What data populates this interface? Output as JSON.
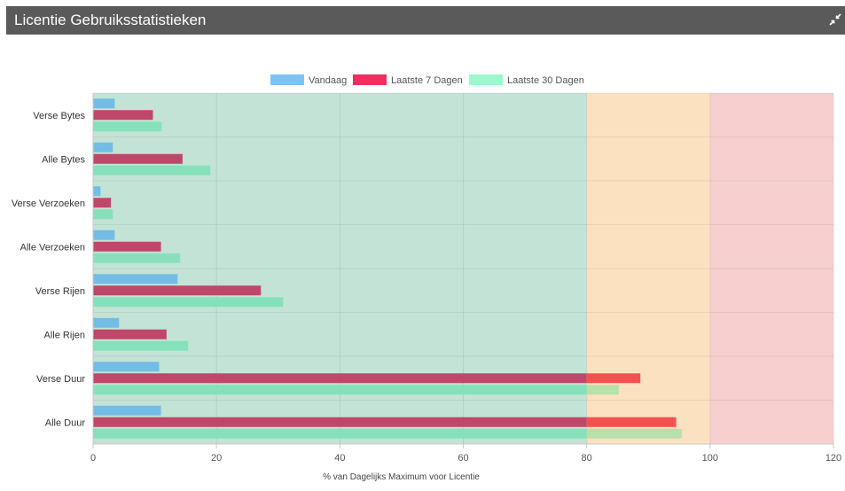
{
  "panel": {
    "title": "Licentie Gebruiksstatistieken",
    "icon": "collapse-icon"
  },
  "chart_data": {
    "type": "bar",
    "orientation": "horizontal",
    "categories": [
      "Verse Bytes",
      "Alle Bytes",
      "Verse Verzoeken",
      "Alle Verzoeken",
      "Verse Rijen",
      "Alle Rijen",
      "Verse Duur",
      "Alle Duur"
    ],
    "series": [
      {
        "name": "Vandaag",
        "values": [
          3.5,
          3.2,
          1.2,
          3.5,
          13.7,
          4.2,
          10.7,
          11.0
        ],
        "color": "#6ab7e8",
        "legend_color": "#7fc3f5"
      },
      {
        "name": "Laatste 7 Dagen",
        "values": [
          9.7,
          14.5,
          2.9,
          11.0,
          27.2,
          11.9,
          88.7,
          94.5
        ],
        "color": "#c0355e",
        "over_color": "#f04a4a",
        "legend_color": "#ee3060"
      },
      {
        "name": "Laatste 30 Dagen",
        "values": [
          11.1,
          19.0,
          3.2,
          14.1,
          30.8,
          15.4,
          85.2,
          95.4
        ],
        "color": "#7fe0b8",
        "over_color": "#b4dfa8",
        "legend_color": "#9ff7cf"
      }
    ],
    "xlabel": "% van Dagelijks Maximum voor Licentie",
    "ylabel": "",
    "xlim": [
      0,
      120
    ],
    "xticks": [
      0,
      20,
      40,
      60,
      80,
      100,
      120
    ],
    "legend_position": "top",
    "grid": true,
    "bands": [
      {
        "from": 0,
        "to": 80,
        "color": "#c3e3d6"
      },
      {
        "from": 80,
        "to": 100,
        "color": "#fce1c1"
      },
      {
        "from": 100,
        "to": 120,
        "color": "#f7cfcf"
      }
    ]
  }
}
